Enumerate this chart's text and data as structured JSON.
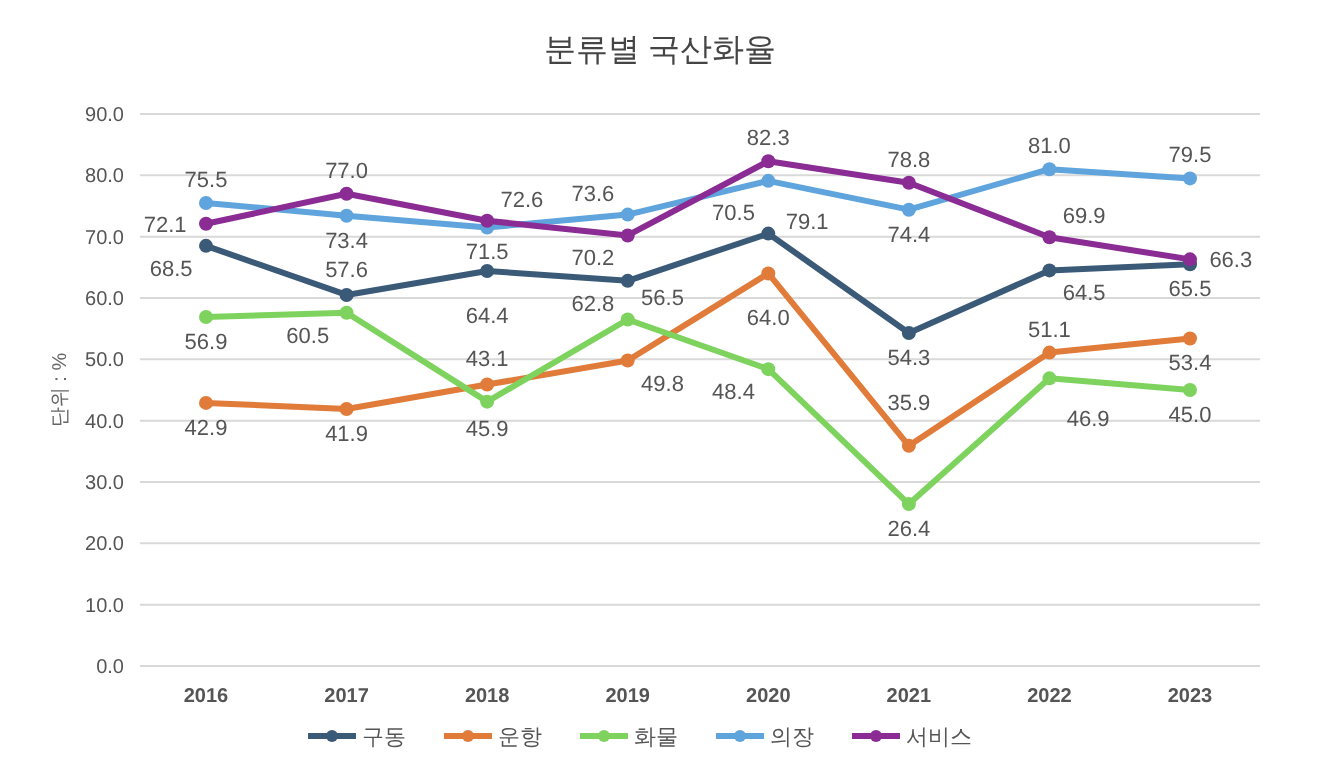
{
  "chart_data": {
    "type": "line",
    "title": "분류별 국산화율",
    "ylabel": "단위 : %",
    "categories": [
      "2016",
      "2017",
      "2018",
      "2019",
      "2020",
      "2021",
      "2022",
      "2023"
    ],
    "ylim": [
      0,
      90
    ],
    "yticks": [
      {
        "value": 0,
        "label": "0.0"
      },
      {
        "value": 10,
        "label": "10.0"
      },
      {
        "value": 20,
        "label": "20.0"
      },
      {
        "value": 30,
        "label": "30.0"
      },
      {
        "value": 40,
        "label": "40.0"
      },
      {
        "value": 50,
        "label": "50.0"
      },
      {
        "value": 60,
        "label": "60.0"
      },
      {
        "value": 70,
        "label": "70.0"
      },
      {
        "value": 80,
        "label": "80.0"
      },
      {
        "value": 90,
        "label": "90.0"
      }
    ],
    "grid": "y",
    "legend": "bottom",
    "marker": "circle",
    "series": [
      {
        "name": "구동",
        "color": "#3b5a78",
        "values": [
          68.5,
          60.5,
          64.4,
          62.8,
          70.5,
          54.3,
          64.5,
          65.5
        ],
        "value_labels": [
          "68.5",
          "60.5",
          "64.4",
          "62.8",
          "70.5",
          "54.3",
          "64.5",
          "65.5"
        ]
      },
      {
        "name": "운항",
        "color": "#e07b39",
        "values": [
          42.9,
          41.9,
          45.9,
          49.8,
          64.0,
          35.9,
          51.1,
          53.4
        ],
        "value_labels": [
          "42.9",
          "41.9",
          "45.9",
          "49.8",
          "64.0",
          "35.9",
          "51.1",
          "53.4"
        ]
      },
      {
        "name": "화물",
        "color": "#7ed35f",
        "values": [
          56.9,
          57.6,
          43.1,
          56.5,
          48.4,
          26.4,
          46.9,
          45.0
        ],
        "value_labels": [
          "56.9",
          "57.6",
          "43.1",
          "56.5",
          "48.4",
          "26.4",
          "46.9",
          "45.0"
        ]
      },
      {
        "name": "의장",
        "color": "#5fa4dc",
        "values": [
          75.5,
          73.4,
          71.5,
          73.6,
          79.1,
          74.4,
          81.0,
          79.5
        ],
        "value_labels": [
          "75.5",
          "73.4",
          "71.5",
          "73.6",
          "79.1",
          "74.4",
          "81.0",
          "79.5"
        ]
      },
      {
        "name": "서비스",
        "color": "#8b2b94",
        "values": [
          72.1,
          77.0,
          72.6,
          70.2,
          82.3,
          78.8,
          69.9,
          66.3
        ],
        "value_labels": [
          "72.1",
          "77.0",
          "72.6",
          "70.2",
          "82.3",
          "78.8",
          "69.9",
          "66.3"
        ]
      }
    ]
  }
}
